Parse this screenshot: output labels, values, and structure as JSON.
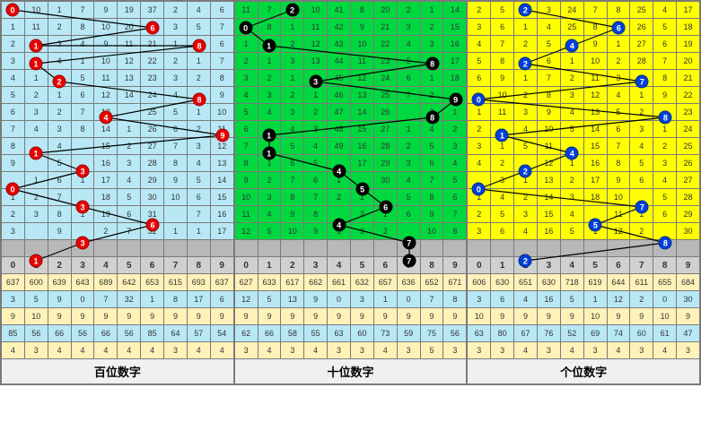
{
  "sections": [
    {
      "title": "百位数字",
      "bgClass": "bg-b",
      "ballClass": "ball-r",
      "rows": [
        [
          10,
          1,
          7,
          9,
          19,
          37,
          2,
          4,
          6
        ],
        [
          11,
          2,
          8,
          10,
          20,
          "",
          3,
          5,
          7
        ],
        [
          3,
          4,
          9,
          11,
          21,
          1,
          "",
          6,
          8
        ],
        [
          "",
          4,
          1,
          10,
          12,
          22,
          2,
          1,
          7,
          9
        ],
        [
          1,
          "",
          5,
          11,
          13,
          23,
          3,
          2,
          8,
          10
        ],
        [
          2,
          1,
          6,
          12,
          14,
          24,
          4,
          "",
          9,
          11
        ],
        [
          3,
          2,
          7,
          13,
          "",
          25,
          5,
          1,
          10,
          12
        ],
        [
          4,
          3,
          8,
          14,
          1,
          26,
          6,
          2,
          11,
          ""
        ],
        [
          "",
          4,
          15,
          2,
          27,
          7,
          3,
          12,
          1
        ],
        [
          "",
          5,
          "",
          16,
          3,
          28,
          8,
          4,
          13,
          2
        ],
        [
          "",
          1,
          6,
          1,
          17,
          4,
          29,
          9,
          5,
          14,
          3
        ],
        [
          2,
          7,
          "",
          18,
          5,
          30,
          10,
          6,
          15,
          4
        ],
        [
          3,
          8,
          1,
          19,
          6,
          31,
          ""
        ],
        [
          "",
          16,
          5
        ],
        [
          "",
          9,
          "",
          2,
          7,
          32,
          1,
          1,
          17,
          6
        ]
      ],
      "rowsOverride": [
        [
          "",
          10,
          1,
          7,
          9,
          19,
          37,
          2,
          4,
          6
        ],
        [
          1,
          11,
          2,
          8,
          10,
          20,
          "",
          3,
          5,
          7
        ],
        [
          2,
          "",
          3,
          4,
          9,
          11,
          21,
          1,
          "",
          6,
          8
        ],
        [
          3,
          "",
          4,
          1,
          10,
          12,
          22,
          2,
          1,
          7,
          9
        ],
        [
          4,
          1,
          "",
          5,
          11,
          13,
          23,
          3,
          2,
          8,
          10
        ],
        [
          5,
          2,
          1,
          6,
          12,
          14,
          24,
          4,
          "",
          9,
          11
        ],
        [
          6,
          3,
          2,
          7,
          13,
          "",
          25,
          5,
          1,
          10,
          12
        ],
        [
          7,
          4,
          3,
          8,
          14,
          1,
          26,
          6,
          2,
          11,
          ""
        ],
        [
          8,
          "",
          4,
          "",
          15,
          2,
          27,
          7,
          3,
          12,
          1
        ],
        [
          9,
          "",
          5,
          "",
          16,
          3,
          28,
          8,
          4,
          13,
          2
        ],
        [
          "",
          1,
          6,
          1,
          17,
          4,
          29,
          9,
          5,
          14,
          3
        ],
        [
          1,
          2,
          7,
          "",
          18,
          5,
          30,
          10,
          6,
          15,
          4
        ],
        [
          2,
          3,
          8,
          1,
          19,
          6,
          31,
          "",
          7,
          16,
          5
        ],
        [
          3,
          "",
          9,
          "",
          2,
          7,
          32,
          1,
          1,
          17,
          6
        ]
      ],
      "balls": [
        {
          "r": 0,
          "c": 0
        },
        {
          "r": 1,
          "c": 6
        },
        {
          "r": 2,
          "c": 1
        },
        {
          "r": 2,
          "c": 8
        },
        {
          "r": 3,
          "c": 1
        },
        {
          "r": 4,
          "c": 2
        },
        {
          "r": 5,
          "c": 8
        },
        {
          "r": 6,
          "c": 4
        },
        {
          "r": 7,
          "c": 9
        },
        {
          "r": 8,
          "c": 1
        },
        {
          "r": 9,
          "c": 3
        },
        {
          "r": 10,
          "c": 0
        },
        {
          "r": 11,
          "c": 3
        },
        {
          "r": 12,
          "c": 6
        },
        {
          "r": 13,
          "c": 3
        },
        {
          "r": 14,
          "c": 1
        }
      ],
      "stats": [
        [
          637,
          600,
          639,
          643,
          689,
          642,
          653,
          615,
          693,
          637
        ],
        [
          3,
          5,
          9,
          0,
          7,
          32,
          1,
          8,
          17,
          6
        ],
        [
          9,
          10,
          9,
          9,
          9,
          9,
          9,
          9,
          9,
          9
        ],
        [
          85,
          56,
          66,
          56,
          66,
          56,
          85,
          64,
          57,
          54
        ],
        [
          4,
          3,
          4,
          4,
          4,
          4,
          4,
          3,
          4,
          4
        ]
      ]
    },
    {
      "title": "十位数字",
      "bgClass": "bg-g",
      "ballClass": "ball-k",
      "rowsOverride": [
        [
          11,
          7,
          "",
          10,
          41,
          8,
          20,
          2,
          1,
          14
        ],
        [
          "",
          8,
          1,
          11,
          42,
          9,
          21,
          3,
          2,
          15
        ],
        [
          1,
          "",
          2,
          12,
          43,
          10,
          22,
          4,
          3,
          16
        ],
        [
          2,
          1,
          3,
          13,
          44,
          11,
          23,
          5,
          "",
          17
        ],
        [
          3,
          2,
          1,
          "",
          45,
          12,
          24,
          6,
          1,
          18
        ],
        [
          4,
          3,
          2,
          1,
          46,
          13,
          25,
          7,
          2,
          ""
        ],
        [
          5,
          4,
          3,
          2,
          47,
          14,
          26,
          "",
          3,
          1
        ],
        [
          6,
          "",
          4,
          3,
          48,
          15,
          27,
          1,
          4,
          2
        ],
        [
          7,
          "",
          5,
          4,
          49,
          16,
          28,
          2,
          5,
          3
        ],
        [
          8,
          1,
          6,
          5,
          "",
          17,
          29,
          3,
          6,
          4
        ],
        [
          9,
          2,
          7,
          6,
          1,
          "",
          30,
          4,
          7,
          5
        ],
        [
          10,
          3,
          8,
          7,
          2,
          1,
          "",
          5,
          8,
          6
        ],
        [
          11,
          4,
          9,
          8,
          "",
          2,
          1,
          6,
          9,
          7
        ],
        [
          12,
          5,
          10,
          9,
          1,
          3,
          2,
          "",
          10,
          8
        ]
      ],
      "balls": [
        {
          "r": 0,
          "c": 2
        },
        {
          "r": 1,
          "c": 0
        },
        {
          "r": 2,
          "c": 1
        },
        {
          "r": 3,
          "c": 8
        },
        {
          "r": 4,
          "c": 3
        },
        {
          "r": 5,
          "c": 9
        },
        {
          "r": 6,
          "c": 8
        },
        {
          "r": 7,
          "c": 1
        },
        {
          "r": 8,
          "c": 1
        },
        {
          "r": 9,
          "c": 4
        },
        {
          "r": 10,
          "c": 5
        },
        {
          "r": 11,
          "c": 6
        },
        {
          "r": 12,
          "c": 4
        },
        {
          "r": 13,
          "c": 7
        },
        {
          "r": 14,
          "c": 7
        }
      ],
      "stats": [
        [
          627,
          633,
          617,
          662,
          661,
          632,
          657,
          636,
          652,
          671
        ],
        [
          12,
          5,
          13,
          9,
          0,
          3,
          1,
          0,
          7,
          8
        ],
        [
          9,
          9,
          9,
          9,
          9,
          9,
          9,
          9,
          9,
          9
        ],
        [
          62,
          66,
          58,
          55,
          63,
          60,
          73,
          59,
          75,
          56
        ],
        [
          3,
          4,
          3,
          4,
          3,
          3,
          4,
          3,
          5,
          3
        ]
      ]
    },
    {
      "title": "个位数字",
      "bgClass": "bg-y",
      "ballClass": "ball-bl",
      "rowsOverride": [
        [
          2,
          5,
          "",
          3,
          24,
          7,
          8,
          25,
          4,
          17
        ],
        [
          3,
          6,
          1,
          4,
          25,
          8,
          "",
          26,
          5,
          18
        ],
        [
          4,
          7,
          2,
          5,
          "",
          9,
          1,
          27,
          6,
          19
        ],
        [
          5,
          8,
          "",
          6,
          1,
          10,
          2,
          28,
          7,
          20
        ],
        [
          6,
          9,
          1,
          7,
          2,
          11,
          3,
          "",
          8,
          21
        ],
        [
          "",
          10,
          2,
          8,
          3,
          12,
          4,
          1,
          9,
          22
        ],
        [
          1,
          11,
          3,
          9,
          4,
          13,
          5,
          2,
          "",
          23
        ],
        [
          2,
          "",
          4,
          10,
          5,
          14,
          6,
          3,
          1,
          24
        ],
        [
          3,
          1,
          5,
          11,
          "",
          15,
          7,
          4,
          2,
          25
        ],
        [
          4,
          2,
          "",
          12,
          1,
          16,
          8,
          5,
          3,
          26
        ],
        [
          "",
          3,
          1,
          13,
          2,
          17,
          9,
          6,
          4,
          27
        ],
        [
          1,
          4,
          2,
          14,
          3,
          18,
          10,
          "",
          5,
          28
        ],
        [
          2,
          5,
          3,
          15,
          4,
          "",
          11,
          1,
          6,
          29
        ],
        [
          3,
          6,
          4,
          16,
          5,
          1,
          12,
          2,
          "",
          30
        ]
      ],
      "balls": [
        {
          "r": 0,
          "c": 2
        },
        {
          "r": 1,
          "c": 6
        },
        {
          "r": 2,
          "c": 4
        },
        {
          "r": 3,
          "c": 2
        },
        {
          "r": 4,
          "c": 7
        },
        {
          "r": 5,
          "c": 0
        },
        {
          "r": 6,
          "c": 8
        },
        {
          "r": 7,
          "c": 1
        },
        {
          "r": 8,
          "c": 4
        },
        {
          "r": 9,
          "c": 2
        },
        {
          "r": 10,
          "c": 0
        },
        {
          "r": 11,
          "c": 7
        },
        {
          "r": 12,
          "c": 5
        },
        {
          "r": 13,
          "c": 8
        },
        {
          "r": 14,
          "c": 2
        }
      ],
      "stats": [
        [
          606,
          630,
          651,
          630,
          718,
          619,
          644,
          611,
          655,
          684
        ],
        [
          3,
          6,
          4,
          16,
          5,
          1,
          12,
          2,
          0,
          30
        ],
        [
          10,
          9,
          9,
          9,
          9,
          10,
          9,
          9,
          10,
          9
        ],
        [
          63,
          80,
          67,
          76,
          52,
          69,
          74,
          60,
          61,
          47
        ],
        [
          3,
          3,
          4,
          3,
          4,
          3,
          4,
          3,
          4,
          3
        ]
      ]
    }
  ],
  "headers": [
    "0",
    "1",
    "2",
    "3",
    "4",
    "5",
    "6",
    "7",
    "8",
    "9"
  ],
  "statClasses": [
    "r1",
    "r2",
    "r3",
    "r4",
    "r5"
  ],
  "colors": {
    "gridBorder": "#7a7a7a",
    "blue": "#b8e8f5",
    "green": "#00d840",
    "yellow": "#ffff00",
    "ballRed": "#e60000",
    "ballBlack": "#000",
    "ballBlue": "#0040d6"
  }
}
